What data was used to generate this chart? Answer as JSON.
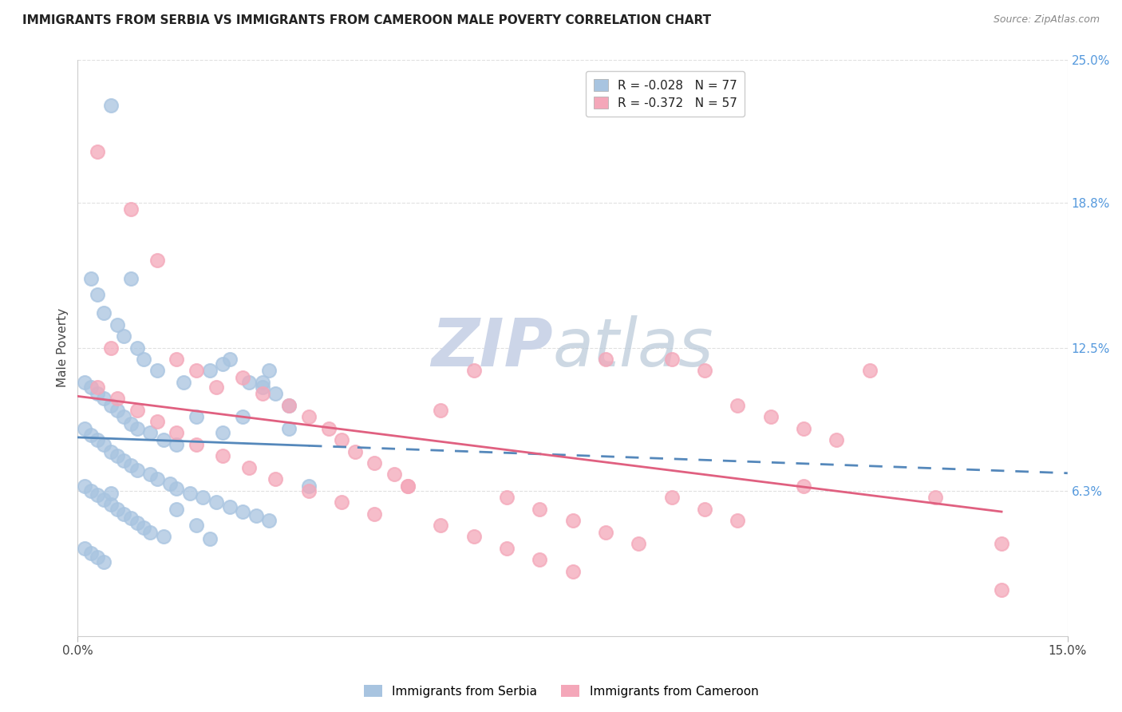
{
  "title": "IMMIGRANTS FROM SERBIA VS IMMIGRANTS FROM CAMEROON MALE POVERTY CORRELATION CHART",
  "source": "Source: ZipAtlas.com",
  "ylabel_label": "Male Poverty",
  "xlim": [
    0.0,
    0.15
  ],
  "ylim": [
    0.0,
    0.25
  ],
  "ytick_positions": [
    0.063,
    0.125,
    0.188,
    0.25
  ],
  "ytick_labels": [
    "6.3%",
    "12.5%",
    "18.8%",
    "25.0%"
  ],
  "xtick_positions": [
    0.0,
    0.15
  ],
  "xtick_labels": [
    "0.0%",
    "15.0%"
  ],
  "serbia_color": "#a8c4e0",
  "cameroon_color": "#f4a7b9",
  "serbia_line_color": "#5588bb",
  "cameroon_line_color": "#e06080",
  "serbia_R": -0.028,
  "serbia_N": 77,
  "cameroon_R": -0.372,
  "cameroon_N": 57,
  "legend_label_serbia": "R = -0.028   N = 77",
  "legend_label_cameroon": "R = -0.372   N = 57",
  "serbia_scatter_x": [
    0.005,
    0.008,
    0.002,
    0.003,
    0.004,
    0.006,
    0.007,
    0.009,
    0.01,
    0.012,
    0.001,
    0.002,
    0.003,
    0.004,
    0.005,
    0.006,
    0.007,
    0.008,
    0.009,
    0.011,
    0.013,
    0.015,
    0.016,
    0.018,
    0.02,
    0.022,
    0.025,
    0.028,
    0.03,
    0.032,
    0.001,
    0.002,
    0.003,
    0.004,
    0.005,
    0.006,
    0.007,
    0.008,
    0.009,
    0.011,
    0.012,
    0.014,
    0.015,
    0.017,
    0.019,
    0.021,
    0.023,
    0.025,
    0.027,
    0.029,
    0.001,
    0.002,
    0.003,
    0.004,
    0.005,
    0.006,
    0.007,
    0.008,
    0.009,
    0.01,
    0.011,
    0.013,
    0.015,
    0.018,
    0.02,
    0.023,
    0.026,
    0.029,
    0.032,
    0.035,
    0.001,
    0.002,
    0.003,
    0.004,
    0.005,
    0.022,
    0.028
  ],
  "serbia_scatter_y": [
    0.23,
    0.155,
    0.155,
    0.148,
    0.14,
    0.135,
    0.13,
    0.125,
    0.12,
    0.115,
    0.11,
    0.108,
    0.105,
    0.103,
    0.1,
    0.098,
    0.095,
    0.092,
    0.09,
    0.088,
    0.085,
    0.083,
    0.11,
    0.095,
    0.115,
    0.088,
    0.095,
    0.108,
    0.105,
    0.1,
    0.09,
    0.087,
    0.085,
    0.083,
    0.08,
    0.078,
    0.076,
    0.074,
    0.072,
    0.07,
    0.068,
    0.066,
    0.064,
    0.062,
    0.06,
    0.058,
    0.056,
    0.054,
    0.052,
    0.05,
    0.065,
    0.063,
    0.061,
    0.059,
    0.057,
    0.055,
    0.053,
    0.051,
    0.049,
    0.047,
    0.045,
    0.043,
    0.055,
    0.048,
    0.042,
    0.12,
    0.11,
    0.115,
    0.09,
    0.065,
    0.038,
    0.036,
    0.034,
    0.032,
    0.062,
    0.118,
    0.11
  ],
  "cameroon_scatter_x": [
    0.003,
    0.005,
    0.008,
    0.012,
    0.015,
    0.018,
    0.021,
    0.025,
    0.028,
    0.032,
    0.035,
    0.038,
    0.04,
    0.042,
    0.045,
    0.048,
    0.05,
    0.055,
    0.06,
    0.065,
    0.07,
    0.075,
    0.08,
    0.085,
    0.09,
    0.095,
    0.1,
    0.105,
    0.11,
    0.115,
    0.003,
    0.006,
    0.009,
    0.012,
    0.015,
    0.018,
    0.022,
    0.026,
    0.03,
    0.035,
    0.04,
    0.045,
    0.05,
    0.055,
    0.06,
    0.065,
    0.07,
    0.075,
    0.08,
    0.09,
    0.095,
    0.1,
    0.11,
    0.12,
    0.13,
    0.14,
    0.14
  ],
  "cameroon_scatter_y": [
    0.21,
    0.125,
    0.185,
    0.163,
    0.12,
    0.115,
    0.108,
    0.112,
    0.105,
    0.1,
    0.095,
    0.09,
    0.085,
    0.08,
    0.075,
    0.07,
    0.065,
    0.098,
    0.115,
    0.06,
    0.055,
    0.05,
    0.045,
    0.04,
    0.12,
    0.115,
    0.1,
    0.095,
    0.09,
    0.085,
    0.108,
    0.103,
    0.098,
    0.093,
    0.088,
    0.083,
    0.078,
    0.073,
    0.068,
    0.063,
    0.058,
    0.053,
    0.065,
    0.048,
    0.043,
    0.038,
    0.033,
    0.028,
    0.12,
    0.06,
    0.055,
    0.05,
    0.065,
    0.115,
    0.06,
    0.04,
    0.02
  ],
  "background_color": "#ffffff",
  "grid_color": "#e0e0e0",
  "watermark_zip": "ZIP",
  "watermark_atlas": "atlas",
  "watermark_color": "#ccd5e8"
}
